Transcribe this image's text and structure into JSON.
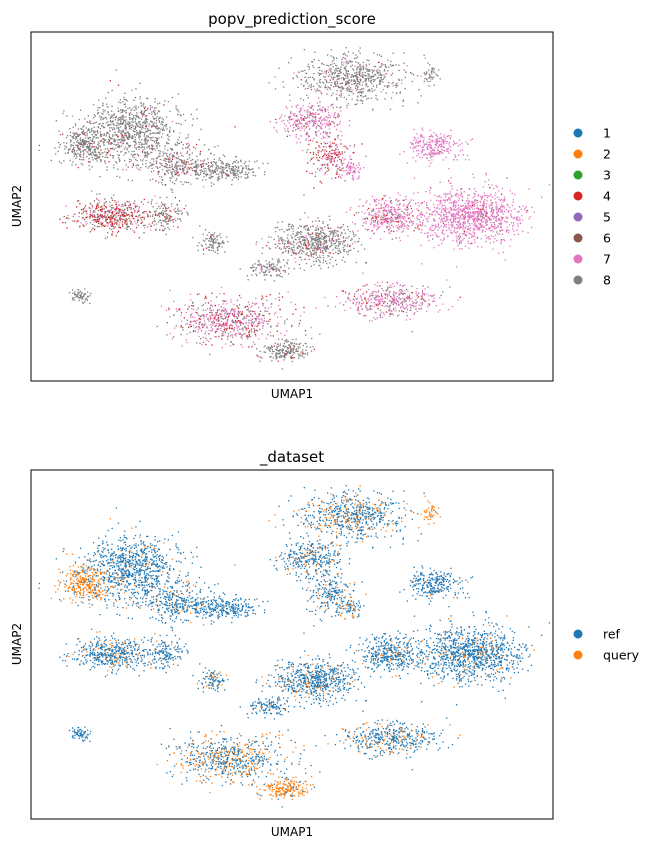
{
  "chart_data": [
    {
      "type": "scatter",
      "title": "popv_prediction_score",
      "xlabel": "UMAP1",
      "ylabel": "UMAP2",
      "legend_placement": "right",
      "grid": false,
      "legend": [
        {
          "label": "1",
          "color": "#1f77b4"
        },
        {
          "label": "2",
          "color": "#ff7f0e"
        },
        {
          "label": "3",
          "color": "#2ca02c"
        },
        {
          "label": "4",
          "color": "#d62728"
        },
        {
          "label": "5",
          "color": "#9467bd"
        },
        {
          "label": "6",
          "color": "#8c564b"
        },
        {
          "label": "7",
          "color": "#e377c2"
        },
        {
          "label": "8",
          "color": "#7f7f7f"
        }
      ]
    },
    {
      "type": "scatter",
      "title": "_dataset",
      "xlabel": "UMAP1",
      "ylabel": "UMAP2",
      "legend_placement": "right",
      "grid": false,
      "legend": [
        {
          "label": "ref",
          "color": "#1f77b4"
        },
        {
          "label": "query",
          "color": "#ff7f0e"
        }
      ]
    }
  ]
}
